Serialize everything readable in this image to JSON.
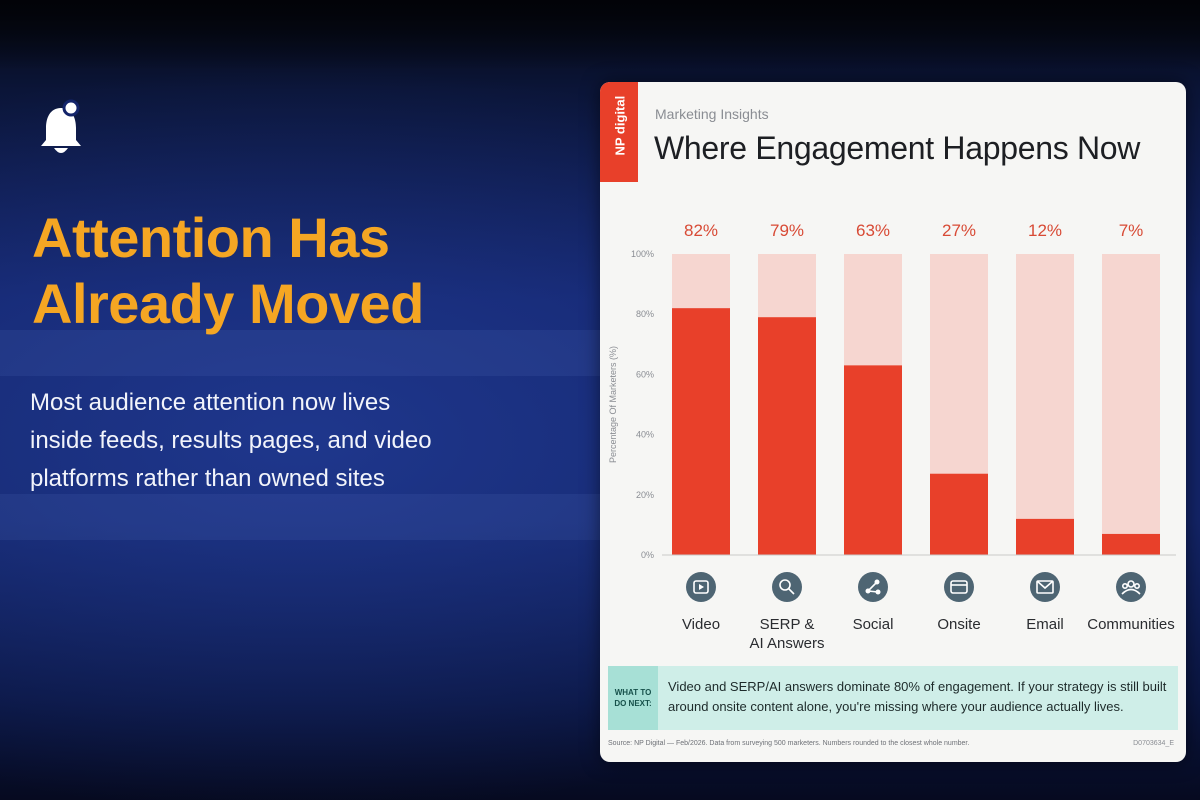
{
  "slide": {
    "headline_line1": "Attention Has",
    "headline_line2": "Already Moved",
    "subtitle": "Most audience attention now lives inside feeds, results pages, and video platforms rather than owned sites"
  },
  "card": {
    "brand": "NP digital",
    "kicker": "Marketing Insights",
    "title": "Where Engagement Happens Now",
    "takeaway_label_line1": "WHAT TO",
    "takeaway_label_line2": "DO NEXT:",
    "takeaway_text": "Video and SERP/AI answers dominate 80% of engagement. If your strategy is still built around onsite content alone, you're missing where your audience actually lives.",
    "source": "Source: NP Digital — Feb/2026. Data from surveying 500 marketers. Numbers rounded to the closest whole number.",
    "doc_code": "D0703634_E"
  },
  "colors": {
    "accent": "#f5a623",
    "bar": "#e8402a",
    "track": "#f6d6d0",
    "value_label": "#d84a35",
    "icon_bg": "#4e6573"
  },
  "chart_data": {
    "type": "bar",
    "title": "Where Engagement Happens Now",
    "ylabel": "Percentage Of Marketers (%)",
    "xlabel": "",
    "ylim": [
      0,
      100
    ],
    "yticks": [
      0,
      20,
      40,
      60,
      80,
      100
    ],
    "ytick_labels": [
      "0%",
      "20%",
      "40%",
      "60%",
      "80%",
      "100%"
    ],
    "categories": [
      {
        "lines": [
          "Video"
        ],
        "icon": "play-icon"
      },
      {
        "lines": [
          "SERP &",
          "AI Answers"
        ],
        "icon": "search-icon"
      },
      {
        "lines": [
          "Social"
        ],
        "icon": "share-icon"
      },
      {
        "lines": [
          "Onsite"
        ],
        "icon": "browser-window-icon"
      },
      {
        "lines": [
          "Email"
        ],
        "icon": "mail-icon"
      },
      {
        "lines": [
          "Communities"
        ],
        "icon": "people-icon"
      }
    ],
    "values": [
      82,
      79,
      63,
      27,
      12,
      7
    ],
    "value_labels": [
      "82%",
      "79%",
      "63%",
      "27%",
      "12%",
      "7%"
    ]
  }
}
